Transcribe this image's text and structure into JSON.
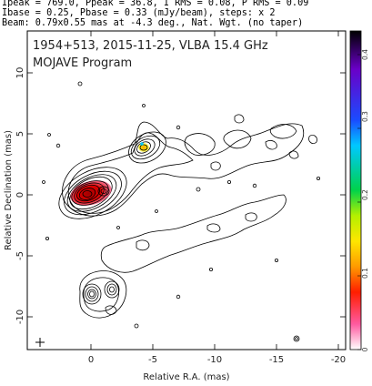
{
  "header": {
    "line1": "Ipeak = 769.0, Ppeak = 36.8, I RMS = 0.08, P RMS = 0.09",
    "line2": "Ibase = 0.25, Pbase = 0.33 (mJy/beam), steps: x 2",
    "line3": "Beam: 0.79x0.55 mas at -4.3 deg., Nat. Wgt. (no taper)"
  },
  "plot": {
    "title_line1": "1954+513, 2015-11-25, VLBA 15.4 GHz",
    "title_line2": "MOJAVE Program",
    "xlabel": "Relative R.A. (mas)",
    "ylabel": "Relative Declination (mas)",
    "x_ticks": [
      "0",
      "-5",
      "-10",
      "-15",
      "-20"
    ],
    "y_ticks": [
      "10",
      "5",
      "0",
      "-5",
      "-10"
    ]
  },
  "colorbar": {
    "ticks": [
      "0.4",
      "0.3",
      "0.2",
      "0.1",
      "0"
    ],
    "colors": [
      "#000000",
      "#6a00c8",
      "#1a4cff",
      "#00c8ff",
      "#00d24a",
      "#b4f000",
      "#ffe600",
      "#ff9a00",
      "#ff1e00",
      "#ff5aa0",
      "#ffffff"
    ]
  }
}
